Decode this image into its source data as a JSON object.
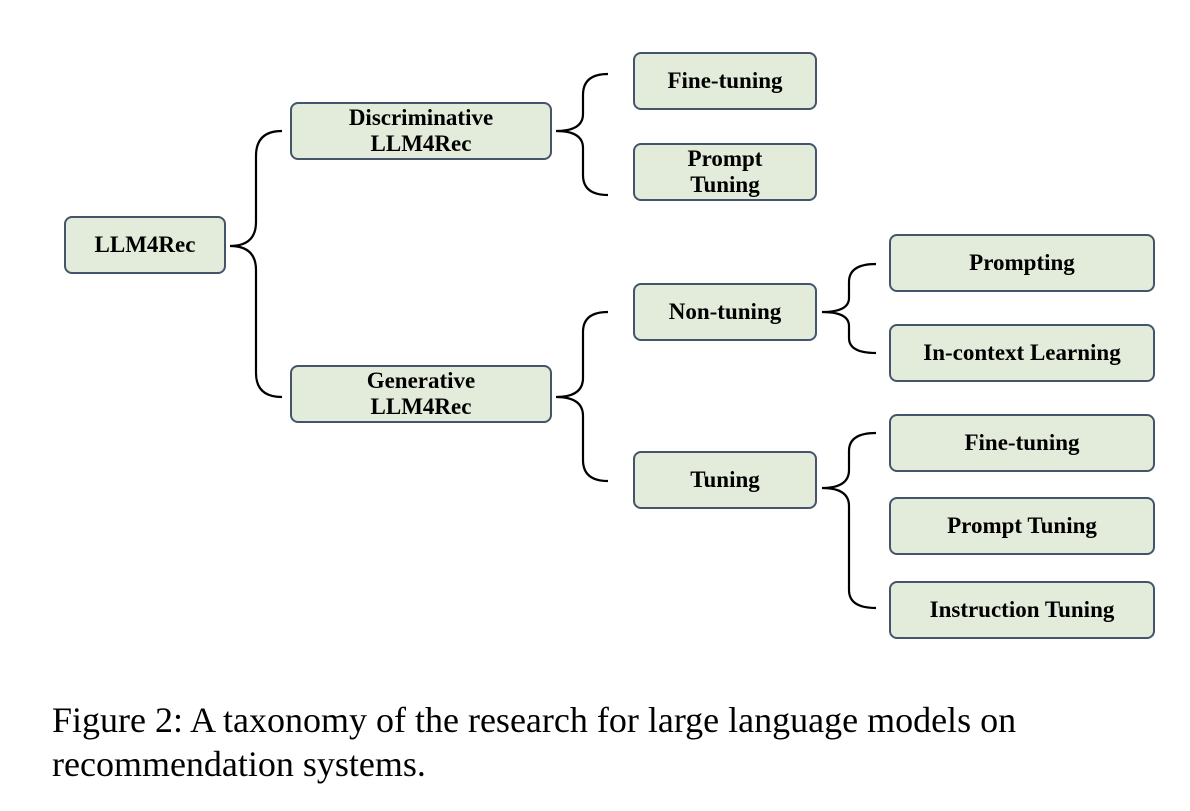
{
  "diagram": {
    "root": {
      "label": "LLM4Rec"
    },
    "discriminative": {
      "line1": "Discriminative",
      "line2": "LLM4Rec"
    },
    "disc_finetuning": {
      "label": "Fine-tuning"
    },
    "disc_prompt": {
      "line1": "Prompt",
      "line2": "Tuning"
    },
    "generative": {
      "line1": "Generative",
      "line2": "LLM4Rec"
    },
    "non_tuning": {
      "label": "Non-tuning"
    },
    "tuning": {
      "label": "Tuning"
    },
    "prompting": {
      "label": "Prompting"
    },
    "in_context": {
      "label": "In-context Learning"
    },
    "gen_finetuning": {
      "label": "Fine-tuning"
    },
    "gen_prompt_tuning": {
      "label": "Prompt Tuning"
    },
    "instruction_tuning": {
      "label": "Instruction Tuning"
    }
  },
  "caption": {
    "text": "Figure 2: A taxonomy of the research for large language models on recommendation systems."
  },
  "colors": {
    "node_fill": "#e3ecda",
    "node_border": "#44546a"
  }
}
